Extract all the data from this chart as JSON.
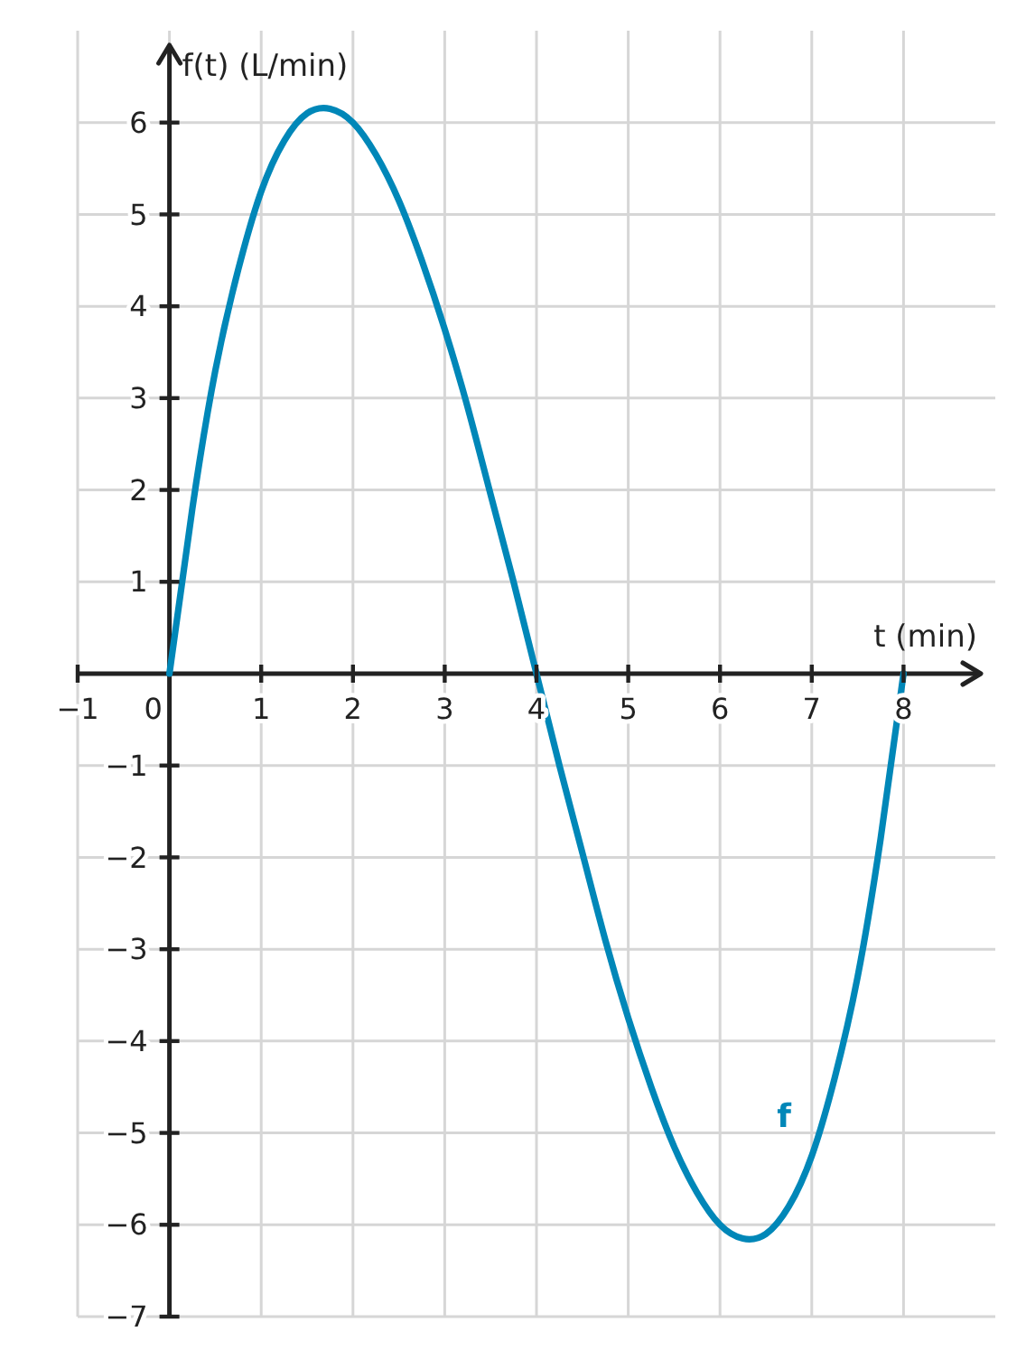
{
  "chart_data": {
    "type": "line",
    "xlabel": "t (min)",
    "ylabel": "f(t) (L/min)",
    "x": [
      0,
      0.25,
      0.5,
      0.75,
      1,
      1.25,
      1.5,
      1.75,
      2,
      2.25,
      2.5,
      2.75,
      3,
      3.25,
      3.5,
      3.75,
      4,
      4.25,
      4.5,
      4.75,
      5,
      5.25,
      5.5,
      5.75,
      6,
      6.25,
      6.5,
      6.75,
      7,
      7.25,
      7.5,
      7.75,
      8
    ],
    "series": [
      {
        "name": "f",
        "color": "#0087b8",
        "values": [
          0,
          1.8,
          3.3,
          4.4,
          5.25,
          5.8,
          6.1,
          6.15,
          6,
          5.65,
          5.15,
          4.5,
          3.75,
          2.9,
          1.95,
          1,
          0,
          -1,
          -1.95,
          -2.9,
          -3.75,
          -4.5,
          -5.15,
          -5.65,
          -6,
          -6.15,
          -6.1,
          -5.8,
          -5.25,
          -4.4,
          -3.3,
          -1.8,
          0
        ]
      }
    ],
    "xlim": [
      -1,
      9
    ],
    "ylim": [
      -7,
      7
    ],
    "xticks": [
      -1,
      0,
      1,
      2,
      3,
      4,
      5,
      6,
      7,
      8
    ],
    "yticks": [
      -7,
      -6,
      -5,
      -4,
      -3,
      -2,
      -1,
      1,
      2,
      3,
      4,
      5,
      6
    ],
    "grid": true,
    "marker": "none",
    "line_style": "solid"
  }
}
